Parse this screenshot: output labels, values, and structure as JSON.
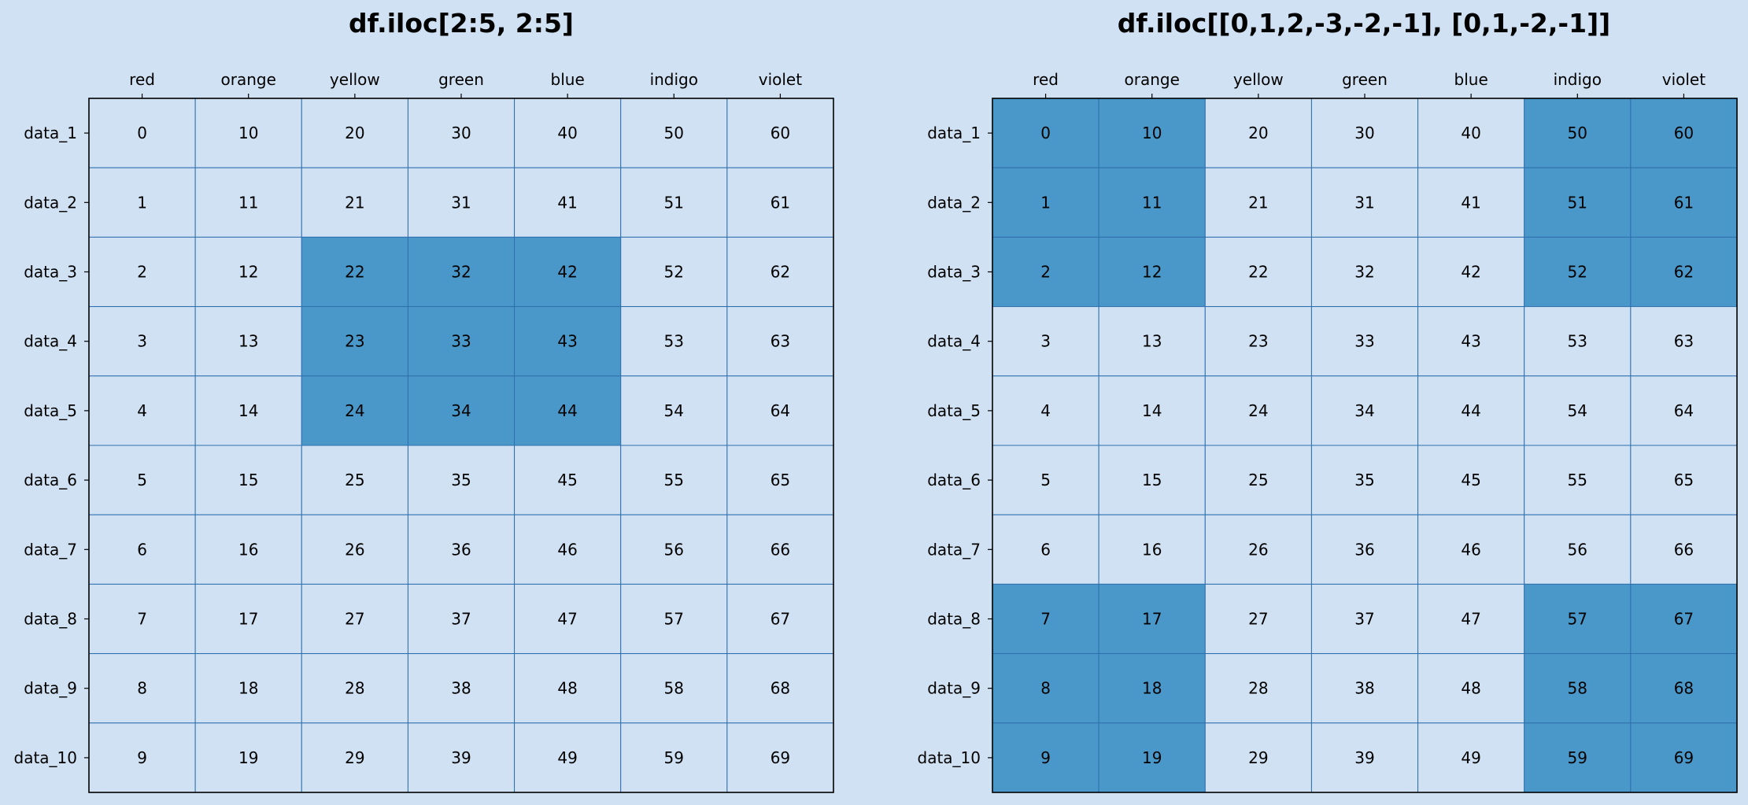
{
  "colors": {
    "background": "#cfe1f2",
    "cell": "#cfe1f2",
    "highlight": "#4a98c9",
    "grid": "#2f6fae",
    "frame": "#000000"
  },
  "chart_data": [
    {
      "type": "table",
      "title": "df.iloc[2:5, 2:5]",
      "columns": [
        "red",
        "orange",
        "yellow",
        "green",
        "blue",
        "indigo",
        "violet"
      ],
      "rows": [
        "data_1",
        "data_2",
        "data_3",
        "data_4",
        "data_5",
        "data_6",
        "data_7",
        "data_8",
        "data_9",
        "data_10"
      ],
      "values": [
        [
          0,
          10,
          20,
          30,
          40,
          50,
          60
        ],
        [
          1,
          11,
          21,
          31,
          41,
          51,
          61
        ],
        [
          2,
          12,
          22,
          32,
          42,
          52,
          62
        ],
        [
          3,
          13,
          23,
          33,
          43,
          53,
          63
        ],
        [
          4,
          14,
          24,
          34,
          44,
          54,
          64
        ],
        [
          5,
          15,
          25,
          35,
          45,
          55,
          65
        ],
        [
          6,
          16,
          26,
          36,
          46,
          56,
          66
        ],
        [
          7,
          17,
          27,
          37,
          47,
          57,
          67
        ],
        [
          8,
          18,
          28,
          38,
          48,
          58,
          68
        ],
        [
          9,
          19,
          29,
          39,
          49,
          59,
          69
        ]
      ],
      "highlight_rows": [
        2,
        3,
        4
      ],
      "highlight_cols": [
        2,
        3,
        4
      ]
    },
    {
      "type": "table",
      "title": "df.iloc[[0,1,2,-3,-2,-1], [0,1,-2,-1]]",
      "columns": [
        "red",
        "orange",
        "yellow",
        "green",
        "blue",
        "indigo",
        "violet"
      ],
      "rows": [
        "data_1",
        "data_2",
        "data_3",
        "data_4",
        "data_5",
        "data_6",
        "data_7",
        "data_8",
        "data_9",
        "data_10"
      ],
      "values": [
        [
          0,
          10,
          20,
          30,
          40,
          50,
          60
        ],
        [
          1,
          11,
          21,
          31,
          41,
          51,
          61
        ],
        [
          2,
          12,
          22,
          32,
          42,
          52,
          62
        ],
        [
          3,
          13,
          23,
          33,
          43,
          53,
          63
        ],
        [
          4,
          14,
          24,
          34,
          44,
          54,
          64
        ],
        [
          5,
          15,
          25,
          35,
          45,
          55,
          65
        ],
        [
          6,
          16,
          26,
          36,
          46,
          56,
          66
        ],
        [
          7,
          17,
          27,
          37,
          47,
          57,
          67
        ],
        [
          8,
          18,
          28,
          38,
          48,
          58,
          68
        ],
        [
          9,
          19,
          29,
          39,
          49,
          59,
          69
        ]
      ],
      "highlight_rows": [
        0,
        1,
        2,
        7,
        8,
        9
      ],
      "highlight_cols": [
        0,
        1,
        5,
        6
      ]
    }
  ]
}
